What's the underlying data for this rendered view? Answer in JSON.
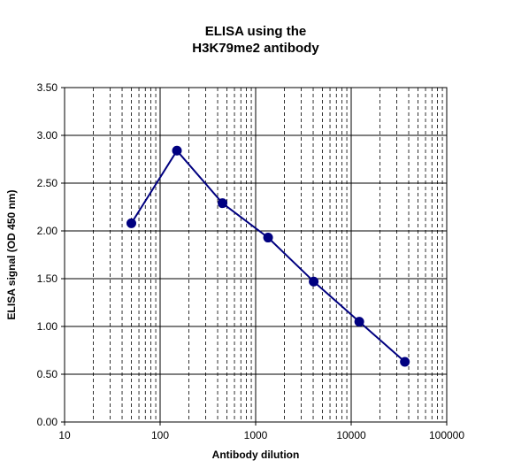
{
  "chart_data": {
    "type": "scatter",
    "title_lines": [
      "ELISA using the",
      "H3K79me2 antibody"
    ],
    "xlabel": "Antibody dilution",
    "ylabel": "ELISA signal (OD 450 nm)",
    "x_scale": "log",
    "xlim": [
      10,
      100000
    ],
    "ylim": [
      0,
      3.5
    ],
    "x_ticks": [
      10,
      100,
      1000,
      10000,
      100000
    ],
    "x_tick_labels": [
      "10",
      "100",
      "1000",
      "10000",
      "100000"
    ],
    "y_ticks": [
      0,
      0.5,
      1,
      1.5,
      2,
      2.5,
      3,
      3.5
    ],
    "y_tick_labels": [
      "0.00",
      "0.50",
      "1.00",
      "1.50",
      "2.00",
      "2.50",
      "3.00",
      "3.50"
    ],
    "grid": {
      "major": true,
      "minor_x": true
    },
    "legend": "none",
    "series": [
      {
        "marker": "circle",
        "line": true,
        "color": "#000080",
        "points": [
          {
            "x": 50,
            "y": 2.08
          },
          {
            "x": 150,
            "y": 2.84
          },
          {
            "x": 450,
            "y": 2.29
          },
          {
            "x": 1350,
            "y": 1.93
          },
          {
            "x": 4050,
            "y": 1.47
          },
          {
            "x": 12150,
            "y": 1.05
          },
          {
            "x": 36450,
            "y": 0.63
          }
        ]
      }
    ]
  }
}
